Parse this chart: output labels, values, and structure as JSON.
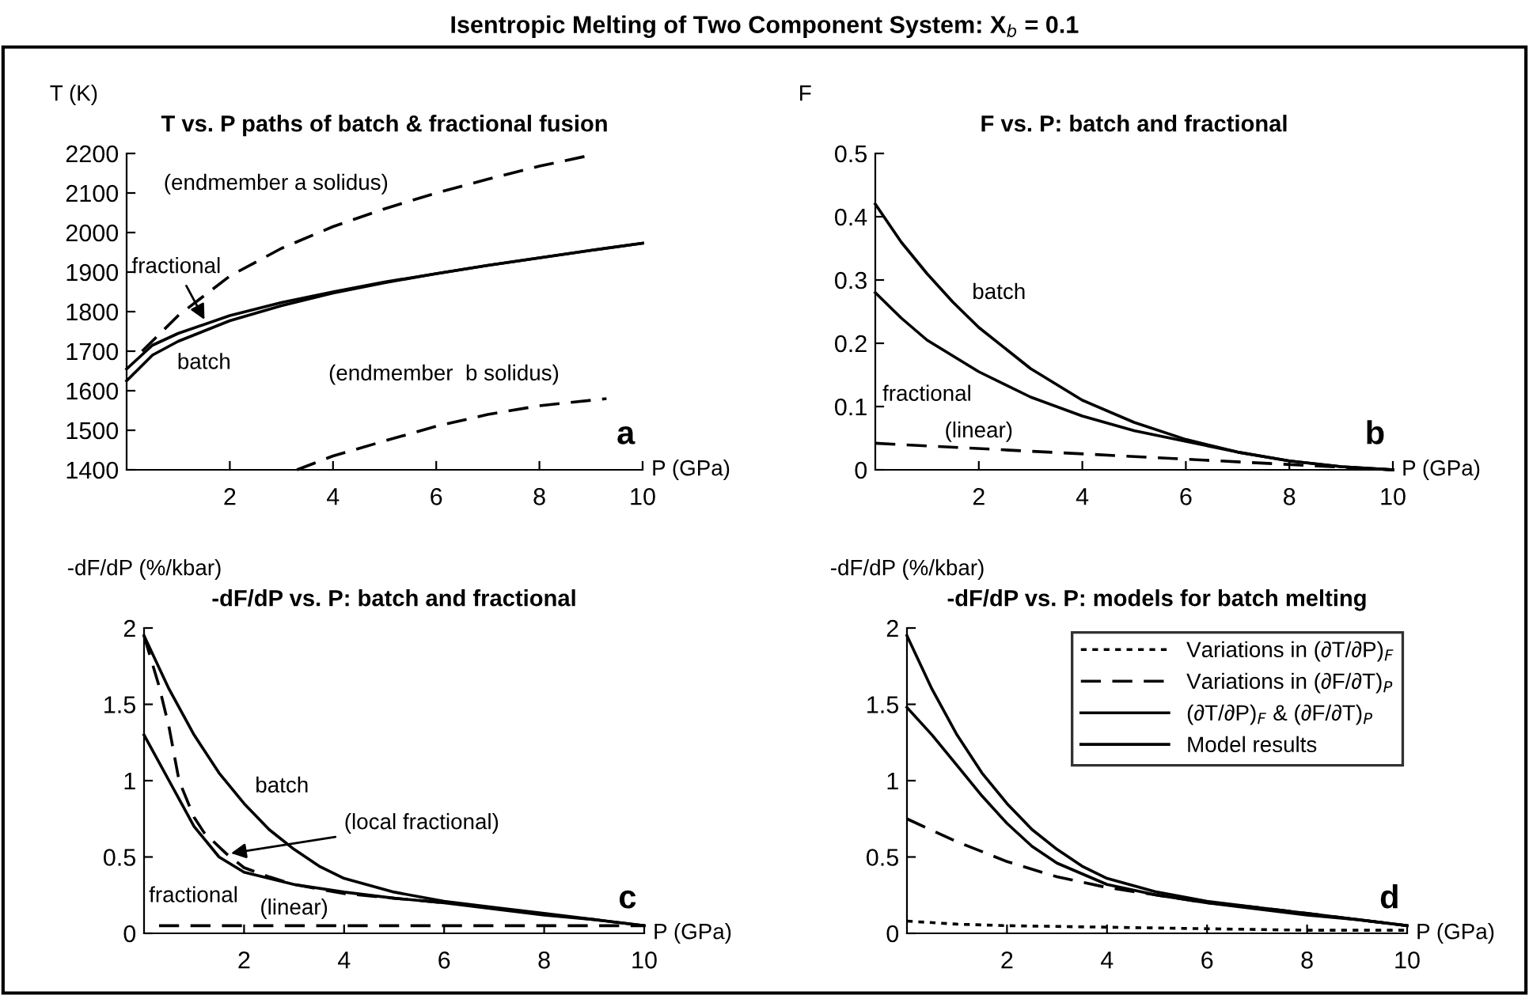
{
  "chart_data": [
    {
      "type": "other",
      "title": "Isentropic Melting of Two Component System: X$_{b}$ = 0.1"
    },
    {
      "type": "line",
      "title": "T vs. P paths of batch & fractional fusion",
      "xlabel": "P (GPa)",
      "ylabel": "T (K)",
      "xlim": [
        0,
        10
      ],
      "xticks": [
        2,
        4,
        6,
        8,
        10
      ],
      "ylim": [
        1400,
        2200
      ],
      "yticks": [
        1400,
        1500,
        1600,
        1700,
        1800,
        1900,
        2000,
        2100,
        2200
      ],
      "grid": false,
      "legend": false,
      "series": [
        {
          "name": "(endmember a solidus)",
          "color": "#000000",
          "line_style": "dashed",
          "x": [
            0.3,
            0.65,
            1,
            2,
            3,
            4,
            5,
            6,
            7,
            8,
            8.9
          ],
          "values": [
            1700,
            1745,
            1790,
            1890,
            1960,
            2015,
            2060,
            2100,
            2135,
            2168,
            2193
          ]
        },
        {
          "name": "(endmember  b solidus)",
          "color": "#000000",
          "line_style": "dashed",
          "x": [
            3.3,
            4,
            5,
            6,
            7,
            8,
            9.3
          ],
          "values": [
            1400,
            1435,
            1473,
            1510,
            1540,
            1562,
            1580
          ]
        },
        {
          "name": "batch",
          "color": "#000000",
          "line_style": "solid",
          "x": [
            0,
            0.5,
            1,
            2,
            3,
            4,
            5,
            6,
            7,
            8,
            9,
            10
          ],
          "values": [
            1625,
            1690,
            1725,
            1777,
            1815,
            1847,
            1873,
            1896,
            1917,
            1936,
            1955,
            1973
          ]
        },
        {
          "color": "#000000",
          "line_style": "solid",
          "x": [
            0,
            0.5,
            1,
            2,
            3,
            4,
            5,
            6,
            7,
            8,
            9,
            10
          ],
          "values": [
            1655,
            1715,
            1745,
            1790,
            1823,
            1850,
            1875,
            1896,
            1917,
            1936,
            1955,
            1973
          ]
        }
      ],
      "annotations": [
        "a",
        {
          "text": "fractional",
          "x": 1.55,
          "y": 1770
        }
      ]
    },
    {
      "type": "line",
      "title": "F vs. P: batch and fractional",
      "xlabel": "P (GPa)",
      "ylabel": "F",
      "xlim": [
        0,
        10
      ],
      "xticks": [
        2,
        4,
        6,
        8,
        10
      ],
      "ylim": [
        0,
        0.5
      ],
      "yticks": [
        0,
        0.1,
        0.2,
        0.3,
        0.4,
        0.5
      ],
      "grid": false,
      "legend": false,
      "series": [
        {
          "name": "batch",
          "color": "#000000",
          "line_style": "solid",
          "x": [
            0,
            0.5,
            1,
            1.5,
            2,
            3,
            4,
            5,
            6,
            7,
            8,
            9,
            10
          ],
          "values": [
            0.42,
            0.36,
            0.31,
            0.265,
            0.225,
            0.16,
            0.11,
            0.075,
            0.048,
            0.028,
            0.014,
            0.005,
            0
          ]
        },
        {
          "name": "fractional",
          "color": "#000000",
          "line_style": "solid",
          "x": [
            0,
            0.5,
            1,
            2,
            3,
            4,
            5,
            6,
            7,
            8,
            9,
            10
          ],
          "values": [
            0.28,
            0.24,
            0.205,
            0.155,
            0.115,
            0.085,
            0.062,
            0.045,
            0.028,
            0.014,
            0.005,
            0
          ]
        },
        {
          "name": "(linear)",
          "color": "#000000",
          "line_style": "dashed",
          "x": [
            0,
            10
          ],
          "values": [
            0.042,
            0
          ]
        }
      ],
      "annotations": [
        "b"
      ]
    },
    {
      "type": "line",
      "title": "-dF/dP vs. P: batch and fractional",
      "xlabel": "P (GPa)",
      "ylabel": "-dF/dP (%/kbar)",
      "xlim": [
        0,
        10
      ],
      "xticks": [
        2,
        4,
        6,
        8,
        10
      ],
      "ylim": [
        0,
        2
      ],
      "yticks": [
        0,
        0.5,
        1,
        1.5,
        2
      ],
      "grid": false,
      "legend": false,
      "series": [
        {
          "name": "batch",
          "color": "#000000",
          "line_style": "solid",
          "x": [
            0,
            0.5,
            1,
            1.5,
            2,
            2.5,
            3,
            3.5,
            4,
            5,
            6,
            7,
            8,
            9,
            10
          ],
          "values": [
            1.95,
            1.6,
            1.3,
            1.05,
            0.85,
            0.68,
            0.55,
            0.44,
            0.36,
            0.27,
            0.21,
            0.17,
            0.13,
            0.09,
            0.05
          ]
        },
        {
          "color": "#000000",
          "line_style": "dashed",
          "x": [
            0,
            0.3,
            0.5,
            0.7,
            1,
            1.2,
            1.65,
            2,
            2.5,
            3,
            3.5,
            4,
            5,
            6
          ],
          "values": [
            1.95,
            1.62,
            1.35,
            1.0,
            0.76,
            0.66,
            0.52,
            0.43,
            0.37,
            0.32,
            0.29,
            0.26,
            0.23,
            0.2
          ]
        },
        {
          "name": "fractional",
          "color": "#000000",
          "line_style": "solid",
          "x": [
            0,
            0.5,
            1,
            1.5,
            2,
            3,
            4,
            5,
            6,
            7,
            8,
            9,
            10
          ],
          "values": [
            1.3,
            1.0,
            0.7,
            0.5,
            0.4,
            0.32,
            0.27,
            0.23,
            0.2,
            0.16,
            0.12,
            0.09,
            0.05
          ]
        },
        {
          "name": "(linear)",
          "color": "#000000",
          "line_style": "dashed",
          "x": [
            0.3,
            10
          ],
          "values": [
            0.05,
            0.05
          ]
        }
      ],
      "annotations": [
        "c",
        {
          "text": "(local fractional)",
          "x": 1.65,
          "y": 0.52
        }
      ]
    },
    {
      "type": "line",
      "title": "-dF/dP vs. P: models for batch melting",
      "xlabel": "P (GPa)",
      "ylabel": "-dF/dP (%/kbar)",
      "xlim": [
        0,
        10
      ],
      "xticks": [
        2,
        4,
        6,
        8,
        10
      ],
      "ylim": [
        0,
        2
      ],
      "yticks": [
        0,
        0.5,
        1,
        1.5,
        2
      ],
      "grid": false,
      "legend": "top right",
      "series": [
        {
          "name": "Variations in (∂T/∂P)$_{F}$",
          "color": "#000000",
          "line_style": "dotted",
          "x": [
            0,
            1,
            2,
            4,
            6,
            8,
            10
          ],
          "values": [
            0.08,
            0.06,
            0.05,
            0.04,
            0.03,
            0.02,
            0.02
          ]
        },
        {
          "name": "Variations in (∂F/∂T)$_{P}$",
          "color": "#000000",
          "line_style": "dashed",
          "x": [
            0,
            1,
            2,
            3,
            4,
            5,
            6,
            7,
            8,
            9,
            10
          ],
          "values": [
            0.75,
            0.6,
            0.47,
            0.37,
            0.3,
            0.25,
            0.2,
            0.17,
            0.13,
            0.09,
            0.05
          ]
        },
        {
          "name": "(∂T/∂P)$_{F}$ & (∂F/∂T)$_{P}$",
          "color": "#000000",
          "line_style": "solid",
          "x": [
            0,
            0.5,
            1,
            1.5,
            2,
            2.5,
            3,
            4,
            5,
            6,
            7,
            8,
            9,
            10
          ],
          "values": [
            1.48,
            1.3,
            1.1,
            0.9,
            0.72,
            0.57,
            0.46,
            0.32,
            0.25,
            0.2,
            0.16,
            0.12,
            0.09,
            0.05
          ]
        },
        {
          "name": "Model results",
          "color": "#000000",
          "line_style": "solid",
          "x": [
            0,
            0.5,
            1,
            1.5,
            2,
            2.5,
            3,
            3.5,
            4,
            5,
            6,
            7,
            8,
            9,
            10
          ],
          "values": [
            1.95,
            1.6,
            1.3,
            1.05,
            0.85,
            0.68,
            0.55,
            0.44,
            0.36,
            0.27,
            0.21,
            0.17,
            0.13,
            0.09,
            0.05
          ]
        }
      ],
      "annotations": [
        "d"
      ]
    }
  ]
}
